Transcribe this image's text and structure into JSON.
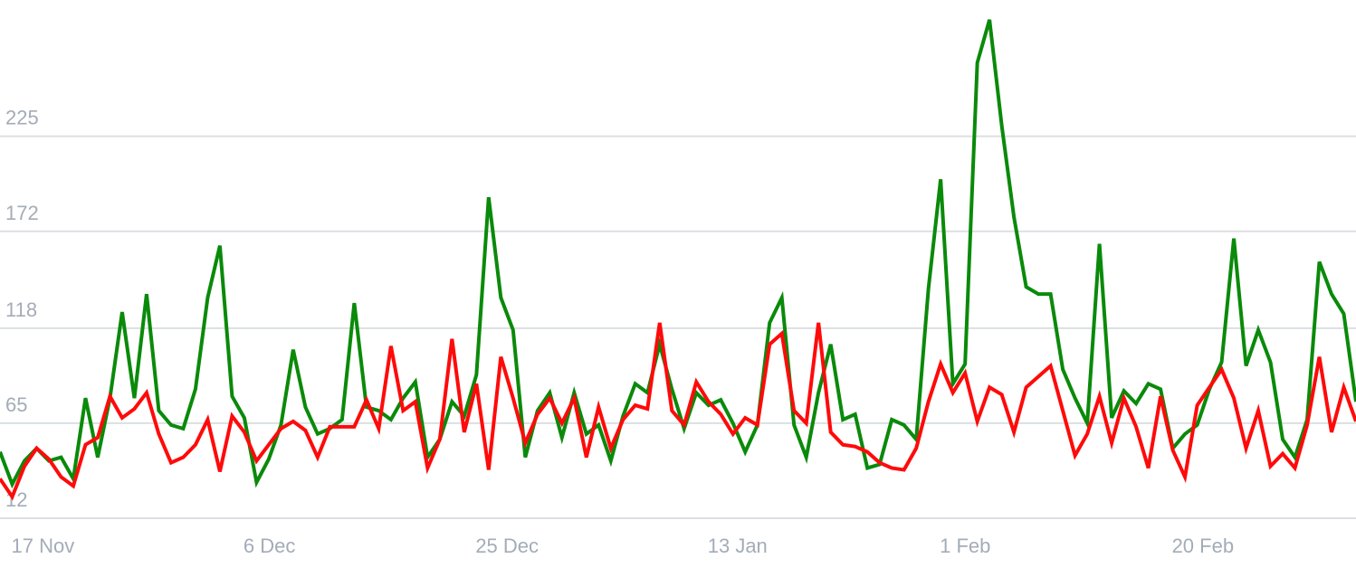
{
  "chart_data": {
    "type": "line",
    "categories": [
      null,
      "17 Nov",
      null,
      null,
      null,
      null,
      null,
      null,
      null,
      null,
      null,
      null,
      null,
      null,
      null,
      null,
      null,
      null,
      null,
      null,
      "6 Dec",
      null,
      null,
      null,
      null,
      null,
      null,
      null,
      null,
      null,
      null,
      null,
      null,
      null,
      null,
      null,
      null,
      null,
      null,
      "25 Dec",
      null,
      null,
      null,
      null,
      null,
      null,
      null,
      null,
      null,
      null,
      null,
      null,
      null,
      null,
      null,
      null,
      null,
      null,
      "13 Jan",
      null,
      null,
      null,
      null,
      null,
      null,
      null,
      null,
      null,
      null,
      null,
      null,
      null,
      null,
      null,
      null,
      null,
      null,
      "1 Feb",
      null,
      null,
      null,
      null,
      null,
      null,
      null,
      null,
      null,
      null,
      null,
      null,
      null,
      null,
      null,
      null,
      null,
      null,
      "20 Feb",
      null,
      null,
      null,
      null,
      null,
      null,
      null,
      null,
      null,
      null,
      null,
      null,
      null,
      null,
      null
    ],
    "series": [
      {
        "color": "#0a8a0a",
        "values": [
          49,
          31,
          44,
          51,
          44,
          46,
          34,
          79,
          46,
          79,
          127,
          79,
          137,
          72,
          64,
          62,
          84,
          135,
          164,
          80,
          68,
          32,
          45,
          64,
          106,
          74,
          59,
          62,
          67,
          132,
          74,
          72,
          67,
          79,
          88,
          46,
          56,
          77,
          69,
          92,
          191,
          135,
          117,
          46,
          72,
          82,
          57,
          82,
          59,
          64,
          44,
          69,
          87,
          82,
          109,
          84,
          62,
          82,
          75,
          78,
          65,
          49,
          64,
          121,
          135,
          64,
          46,
          82,
          109,
          67,
          70,
          40,
          42,
          67,
          64,
          56,
          140,
          201,
          87,
          98,
          266,
          290,
          231,
          180,
          141,
          137,
          137,
          95,
          79,
          65,
          165,
          68,
          83,
          76,
          87,
          84,
          51,
          59,
          64,
          84,
          99,
          168,
          97,
          117,
          99,
          56,
          46,
          67,
          155,
          137,
          126,
          77
        ]
      },
      {
        "color": "#ff0a0a",
        "values": [
          34,
          24,
          41,
          51,
          45,
          35,
          30,
          53,
          57,
          80,
          68,
          73,
          82,
          59,
          43,
          46,
          53,
          67,
          38,
          69,
          60,
          44,
          53,
          62,
          66,
          61,
          46,
          63,
          63,
          63,
          78,
          62,
          108,
          72,
          77,
          40,
          56,
          112,
          60,
          87,
          39,
          102,
          79,
          54,
          70,
          79,
          65,
          79,
          46,
          74,
          51,
          67,
          75,
          73,
          121,
          72,
          64,
          88,
          77,
          70,
          59,
          68,
          64,
          109,
          115,
          72,
          65,
          121,
          60,
          53,
          52,
          49,
          43,
          40,
          39,
          51,
          77,
          98,
          82,
          93,
          66,
          85,
          81,
          60,
          85,
          91,
          97,
          72,
          47,
          59,
          80,
          54,
          79,
          63,
          40,
          80,
          50,
          35,
          75,
          85,
          95,
          79,
          51,
          72,
          41,
          48,
          40,
          64,
          102,
          60,
          85,
          66
        ]
      }
    ],
    "ylim": [
      12,
      301
    ],
    "yticks": [
      12,
      65,
      118,
      172,
      225
    ],
    "grid": true
  }
}
